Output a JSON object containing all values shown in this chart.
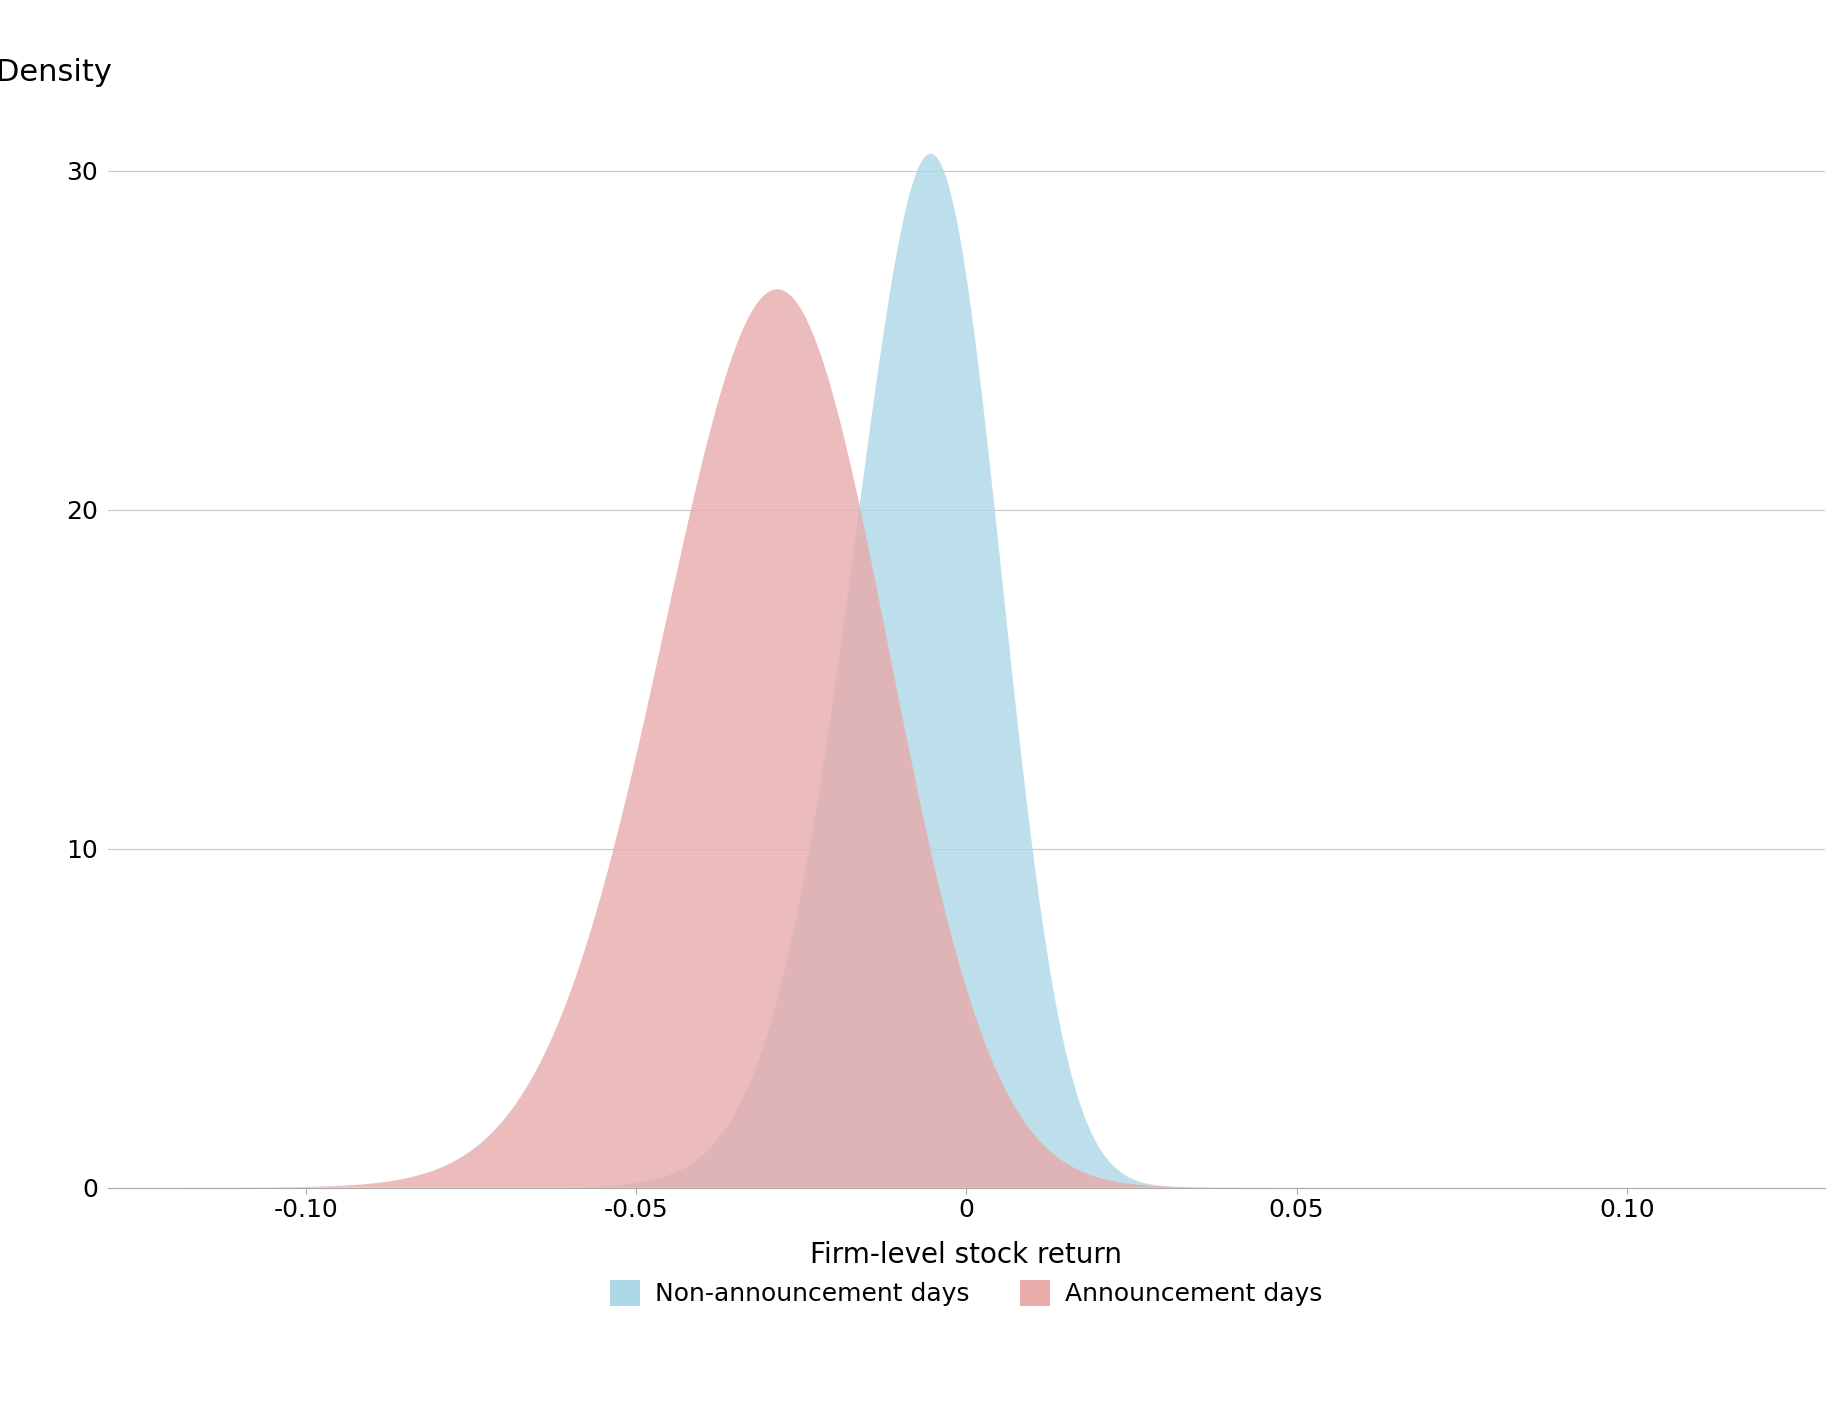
{
  "ylabel": "Density",
  "xlabel": "Firm-level stock return",
  "xlim": [
    -0.13,
    0.13
  ],
  "ylim": [
    0,
    32
  ],
  "yticks": [
    0,
    10,
    20,
    30
  ],
  "xticks": [
    -0.1,
    -0.05,
    0.0,
    0.05,
    0.1
  ],
  "xtick_labels": [
    "-0.10",
    "-0.05",
    "0",
    "0.05",
    "0.10"
  ],
  "blue_mean": 0.001,
  "blue_std": 0.0155,
  "blue_peak": 30.5,
  "red_mean": -0.02,
  "red_std": 0.021,
  "red_peak": 26.5,
  "blue_color": "#ADD8E8",
  "red_color": "#E8AAAA",
  "blue_alpha": 0.8,
  "red_alpha": 0.8,
  "legend_blue_label": "Non-announcement days",
  "legend_red_label": "Announcement days",
  "label_fontsize": 20,
  "tick_fontsize": 18,
  "legend_fontsize": 18,
  "ylabel_fontsize": 22,
  "grid_color": "#C8C8C8",
  "grid_linewidth": 0.8,
  "background_color": "#FFFFFF"
}
